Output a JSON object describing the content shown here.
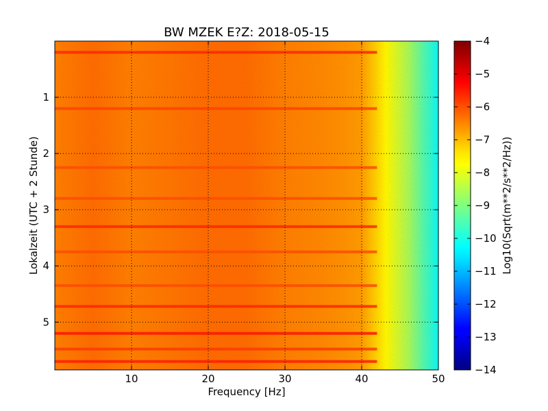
{
  "chart_data": {
    "type": "heatmap",
    "title": "BW MZEK E?Z: 2018-05-15",
    "xlabel": "Frequency [Hz]",
    "ylabel": "Lokalzeit (UTC + 2 Stunde)",
    "xlim": [
      0,
      50
    ],
    "ylim": [
      5.85,
      0.0
    ],
    "y_inverted": true,
    "x_ticks": [
      10,
      20,
      30,
      40,
      50
    ],
    "y_ticks": [
      1,
      2,
      3,
      4,
      5
    ],
    "grid": true,
    "colormap": "jet",
    "colorbar": {
      "label": "Log10(Sqrt(m**2/s**2/Hz))",
      "range": [
        -14,
        -4
      ],
      "ticks": [
        -4,
        -5,
        -6,
        -7,
        -8,
        -9,
        -10,
        -11,
        -12,
        -13,
        -14
      ]
    },
    "spectral_profile_log10": {
      "frequency_hz": [
        0,
        5,
        10,
        15,
        20,
        25,
        30,
        35,
        38,
        40,
        42,
        44,
        46,
        48,
        50
      ],
      "level": [
        -6.5,
        -6.3,
        -6.5,
        -6.4,
        -6.3,
        -6.3,
        -6.5,
        -6.6,
        -6.7,
        -6.8,
        -7.4,
        -8.0,
        -8.6,
        -9.5,
        -10.3
      ]
    },
    "high_energy_bands": [
      {
        "time": 0.2,
        "level": -5.6
      },
      {
        "time": 1.2,
        "level": -5.9
      },
      {
        "time": 2.25,
        "level": -6.0
      },
      {
        "time": 2.8,
        "level": -6.0
      },
      {
        "time": 3.3,
        "level": -5.6
      },
      {
        "time": 3.75,
        "level": -6.0
      },
      {
        "time": 4.35,
        "level": -6.0
      },
      {
        "time": 4.72,
        "level": -5.6
      },
      {
        "time": 5.2,
        "level": -5.4
      },
      {
        "time": 5.48,
        "level": -5.8
      },
      {
        "time": 5.7,
        "level": -5.5
      }
    ]
  }
}
